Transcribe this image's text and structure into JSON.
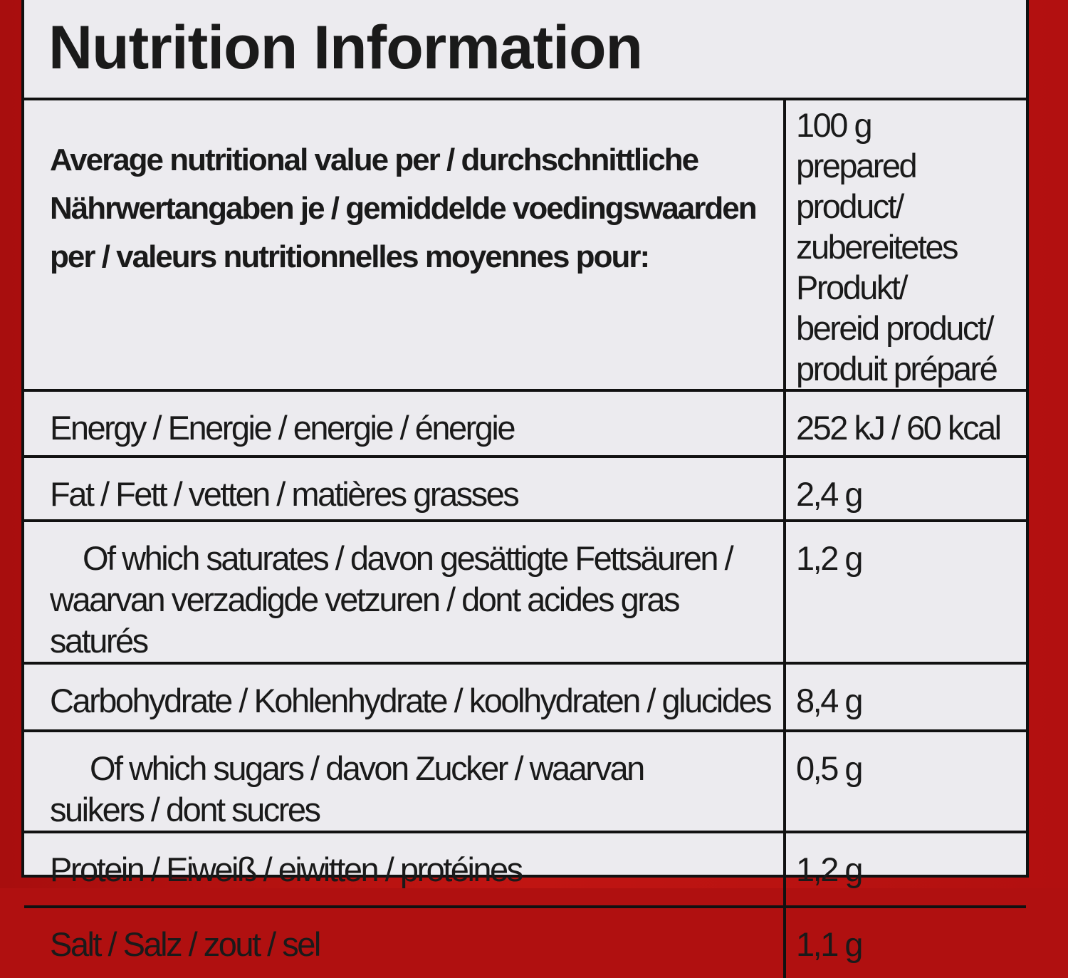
{
  "title": "Nutrition Information",
  "header": {
    "label": "Average nutritional value per / durchschnittliche Nährwertangaben je / gemiddelde voedingswaarden per / valeurs nutritionnelles moyennes pour:",
    "value_lines": [
      "100 g",
      "prepared product/",
      "zubereitetes Produkt/",
      "bereid product/",
      "produit préparé"
    ]
  },
  "rows": [
    {
      "label": "Energy / Energie / energie / énergie",
      "value": "252 kJ / 60 kcal"
    },
    {
      "label": "Fat / Fett / vetten / matières grasses",
      "value": "2,4 g"
    },
    {
      "label": "Of which saturates / davon gesättigte Fettsäuren / waarvan  verzadigde vetzuren / dont acides gras saturés",
      "value": "1,2 g"
    },
    {
      "label": "Carbohydrate / Kohlenhydrate / koolhydraten / glucides",
      "value": "8,4 g"
    },
    {
      "label": "Of which sugars / davon Zucker / waarvan suikers / dont sucres",
      "value": "0,5 g"
    },
    {
      "label": "Protein / Eiweiß / eiwitten / protéines",
      "value": "1,2 g"
    },
    {
      "label": "Salt / Salz / zout / sel",
      "value": "1,1 g"
    }
  ],
  "colors": {
    "background": "#b01010",
    "panel": "#ecebef",
    "text": "#1a1a1a"
  }
}
